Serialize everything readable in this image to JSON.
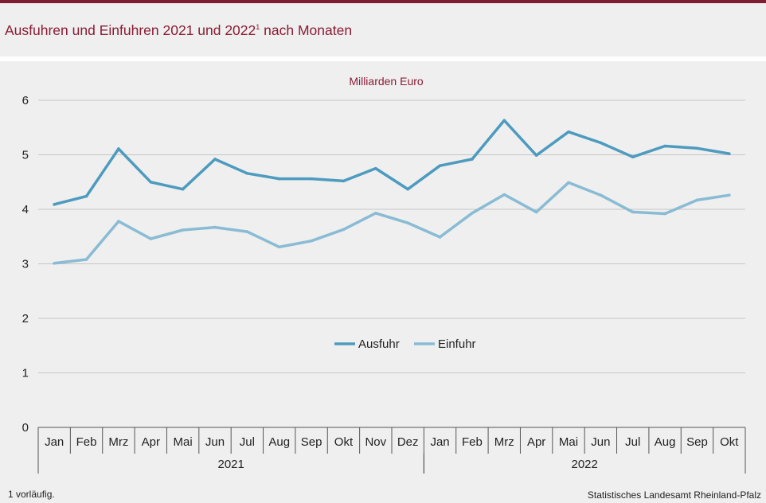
{
  "header": {
    "title": "Ausfuhren und Einfuhren 2021 und 2022",
    "title_sup": "1",
    "title_suffix": " nach Monaten"
  },
  "footer": {
    "footnote": "1 vorläufig.",
    "source": "Statistisches Landesamt Rheinland-Pfalz"
  },
  "colors": {
    "accent": "#7f1d32",
    "ausfuhr": "#4d9bbf",
    "einfuhr": "#89bcd4"
  },
  "chart_data": {
    "type": "line",
    "unit_label": "Milliarden Euro",
    "categories": [
      "Jan",
      "Feb",
      "Mrz",
      "Apr",
      "Mai",
      "Jun",
      "Jul",
      "Aug",
      "Sep",
      "Okt",
      "Nov",
      "Dez",
      "Jan",
      "Feb",
      "Mrz",
      "Apr",
      "Mai",
      "Jun",
      "Jul",
      "Aug",
      "Sep",
      "Okt"
    ],
    "groups": [
      {
        "label": "2021",
        "count": 12
      },
      {
        "label": "2022",
        "count": 10
      }
    ],
    "series": [
      {
        "name": "Ausfuhr",
        "color": "#4d9bbf",
        "values": [
          4.09,
          4.24,
          5.11,
          4.5,
          4.37,
          4.92,
          4.66,
          4.56,
          4.56,
          4.52,
          4.75,
          4.37,
          4.8,
          4.92,
          5.63,
          4.99,
          5.42,
          5.22,
          4.96,
          5.16,
          5.12,
          5.02
        ]
      },
      {
        "name": "Einfuhr",
        "color": "#89bcd4",
        "values": [
          3.01,
          3.08,
          3.78,
          3.46,
          3.62,
          3.67,
          3.59,
          3.31,
          3.42,
          3.63,
          3.93,
          3.75,
          3.49,
          3.93,
          4.27,
          3.95,
          4.49,
          4.26,
          3.95,
          3.92,
          4.17,
          4.26
        ]
      }
    ],
    "ylim": [
      0,
      6
    ],
    "yticks": [
      0,
      1,
      2,
      3,
      4,
      5,
      6
    ],
    "grid": true,
    "legend_position": "center"
  }
}
